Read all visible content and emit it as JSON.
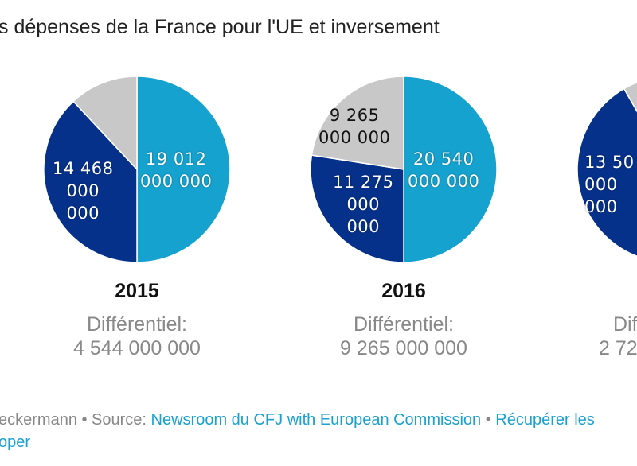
{
  "title": "s dépenses de la France pour l'UE et inversement",
  "colors": {
    "light_blue": "#15a2cf",
    "dark_blue": "#06318a",
    "grey": "#c8c8c8"
  },
  "chart_data": [
    {
      "type": "pie",
      "title": "2015",
      "slices": [
        {
          "value": 19012000000,
          "label": "19 012 000 000",
          "color": "#15a2cf"
        },
        {
          "value": 14468000000,
          "label": "14 468 000 000",
          "color": "#06318a"
        },
        {
          "value": 4544000000,
          "label": "",
          "color": "#c8c8c8"
        }
      ],
      "diff_label": "Différentiel:",
      "diff_value": "4 544 000 000"
    },
    {
      "type": "pie",
      "title": "2016",
      "slices": [
        {
          "value": 20540000000,
          "label": "20 540 000 000",
          "color": "#15a2cf"
        },
        {
          "value": 11275000000,
          "label": "11 275 000 000",
          "color": "#06318a"
        },
        {
          "value": 9265000000,
          "label": "9 265 000 000",
          "color": "#c8c8c8"
        }
      ],
      "diff_label": "Différentiel:",
      "diff_value": "9 265 000 000"
    },
    {
      "type": "pie",
      "title": "",
      "slices": [
        {
          "value": 50,
          "label": "",
          "color": "#15a2cf"
        },
        {
          "value": 41.7,
          "label": "13 50",
          "color": "#06318a"
        },
        {
          "value": 8.3,
          "label": "",
          "color": "#c8c8c8"
        }
      ],
      "diff_label": "Dif",
      "diff_value": "2 72"
    }
  ],
  "footer": {
    "prefix": "eckermann • Source: ",
    "source_link": "Newsroom du CFJ with European Commission",
    "sep": " • ",
    "data_link": "Récupérer les",
    "line2": "oper"
  }
}
